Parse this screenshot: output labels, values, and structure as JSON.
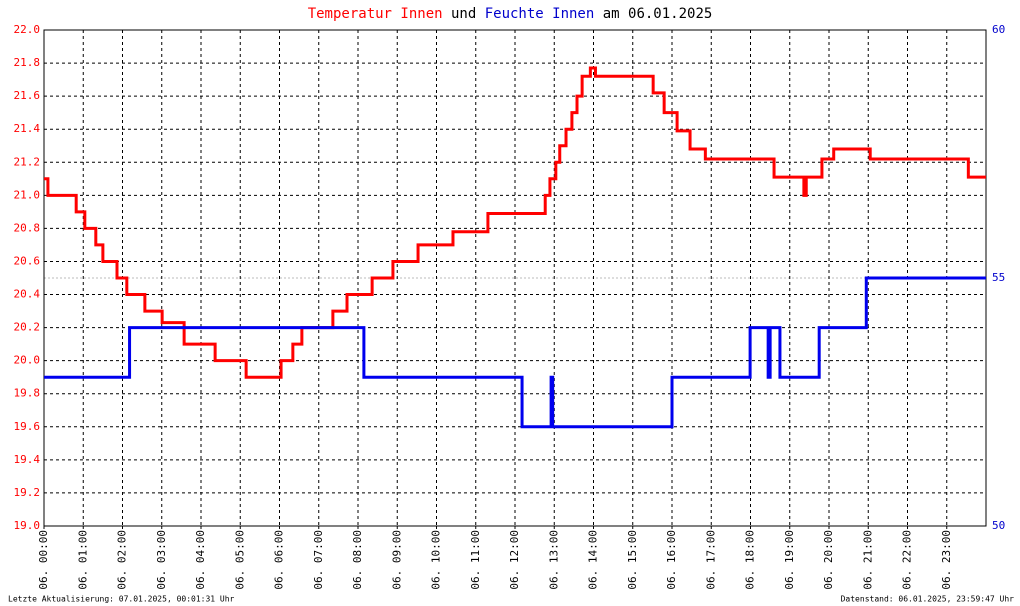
{
  "chart_data": {
    "type": "line",
    "title_parts": [
      {
        "text": "Temperatur Innen",
        "color": "#ff0000"
      },
      {
        "text": "und",
        "color": "#000000"
      },
      {
        "text": "Feuchte Innen",
        "color": "#0000cc"
      },
      {
        "text": "am 06.01.2025",
        "color": "#000000"
      }
    ],
    "footer_left": "Letzte Aktualisierung: 07.01.2025, 00:01:31 Uhr",
    "footer_right": "Datenstand: 06.01.2025, 23:59:47 Uhr",
    "grid": true,
    "xlim": [
      0,
      24
    ],
    "xticks": [
      {
        "value": 0,
        "label": "06. 00:00"
      },
      {
        "value": 1,
        "label": "06. 01:00"
      },
      {
        "value": 2,
        "label": "06. 02:00"
      },
      {
        "value": 3,
        "label": "06. 03:00"
      },
      {
        "value": 4,
        "label": "06. 04:00"
      },
      {
        "value": 5,
        "label": "06. 05:00"
      },
      {
        "value": 6,
        "label": "06. 06:00"
      },
      {
        "value": 7,
        "label": "06. 07:00"
      },
      {
        "value": 8,
        "label": "06. 08:00"
      },
      {
        "value": 9,
        "label": "06. 09:00"
      },
      {
        "value": 10,
        "label": "06. 10:00"
      },
      {
        "value": 11,
        "label": "06. 11:00"
      },
      {
        "value": 12,
        "label": "06. 12:00"
      },
      {
        "value": 13,
        "label": "06. 13:00"
      },
      {
        "value": 14,
        "label": "06. 14:00"
      },
      {
        "value": 15,
        "label": "06. 15:00"
      },
      {
        "value": 16,
        "label": "06. 16:00"
      },
      {
        "value": 17,
        "label": "06. 17:00"
      },
      {
        "value": 18,
        "label": "06. 18:00"
      },
      {
        "value": 19,
        "label": "06. 19:00"
      },
      {
        "value": 20,
        "label": "06. 20:00"
      },
      {
        "value": 21,
        "label": "06. 21:00"
      },
      {
        "value": 22,
        "label": "06. 22:00"
      },
      {
        "value": 23,
        "label": "06. 23:00"
      }
    ],
    "ylim": [
      19,
      22
    ],
    "yticks": [
      {
        "value": 19,
        "label": "19.0"
      },
      19.2,
      19.4,
      19.6,
      19.8,
      {
        "value": 20,
        "label": "20.0"
      },
      20.2,
      20.4,
      20.6,
      20.8,
      {
        "value": 21,
        "label": "21.0"
      },
      21.2,
      21.4,
      21.6,
      21.8,
      {
        "value": 22,
        "label": "22.0"
      }
    ],
    "ytick_color": "#ff0000",
    "y2lim": [
      50,
      60
    ],
    "y2ticks": [
      50,
      55,
      60
    ],
    "y2tick_color": "#0000cc",
    "series": [
      {
        "name": "Temperatur Innen",
        "color": "#ff0000",
        "axis": "y",
        "x": [
          0,
          0.1,
          0.1,
          0.82,
          0.82,
          1.04,
          1.04,
          1.32,
          1.32,
          1.5,
          1.5,
          1.86,
          1.86,
          2.11,
          2.11,
          2.57,
          2.57,
          3.01,
          3.01,
          3.57,
          3.57,
          4.36,
          4.36,
          5.15,
          5.15,
          6.04,
          6.04,
          6.34,
          6.34,
          6.57,
          6.57,
          7.36,
          7.36,
          7.72,
          7.72,
          8.36,
          8.36,
          8.89,
          8.89,
          9.53,
          9.53,
          10.42,
          10.42,
          11.31,
          11.31,
          12.77,
          12.77,
          12.89,
          12.89,
          13.04,
          13.04,
          13.14,
          13.14,
          13.3,
          13.3,
          13.45,
          13.45,
          13.58,
          13.58,
          13.71,
          13.71,
          13.92,
          13.92,
          14.05,
          14.05,
          15.52,
          15.52,
          15.8,
          15.8,
          16.13,
          16.13,
          16.46,
          16.46,
          16.85,
          16.85,
          18.6,
          18.6,
          19.36,
          19.36,
          19.42,
          19.42,
          19.82,
          19.82,
          20.12,
          20.12,
          21.05,
          21.05,
          23.55,
          23.55,
          24
        ],
        "values": [
          21.1,
          21.1,
          21.0,
          21.0,
          20.9,
          20.9,
          20.8,
          20.8,
          20.7,
          20.7,
          20.6,
          20.6,
          20.5,
          20.5,
          20.4,
          20.4,
          20.3,
          20.3,
          20.23,
          20.23,
          20.1,
          20.1,
          20.0,
          20.0,
          19.9,
          19.9,
          20.0,
          20.0,
          20.1,
          20.1,
          20.2,
          20.2,
          20.3,
          20.3,
          20.4,
          20.4,
          20.5,
          20.5,
          20.6,
          20.6,
          20.7,
          20.7,
          20.78,
          20.78,
          20.89,
          20.89,
          21.0,
          21.0,
          21.1,
          21.1,
          21.2,
          21.2,
          21.3,
          21.3,
          21.4,
          21.4,
          21.5,
          21.5,
          21.6,
          21.6,
          21.72,
          21.72,
          21.77,
          21.77,
          21.72,
          21.72,
          21.62,
          21.62,
          21.5,
          21.5,
          21.39,
          21.39,
          21.28,
          21.28,
          21.22,
          21.22,
          21.11,
          21.11,
          21.0,
          21.0,
          21.11,
          21.11,
          21.22,
          21.22,
          21.28,
          21.28,
          21.22,
          21.22,
          21.11,
          21.11
        ]
      },
      {
        "name": "Feuchte Innen",
        "color": "#0000ee",
        "axis": "y2",
        "x": [
          0,
          2.18,
          2.18,
          8.15,
          8.15,
          12.18,
          12.18,
          12.92,
          12.92,
          12.96,
          12.96,
          16.0,
          16.0,
          17.99,
          17.99,
          18.45,
          18.45,
          18.5,
          18.5,
          18.75,
          18.75,
          19.75,
          19.75,
          20.95,
          20.95,
          24
        ],
        "values": [
          53,
          53,
          54,
          54,
          53,
          53,
          52,
          52,
          53,
          53,
          52,
          52,
          53,
          53,
          54,
          54,
          53,
          53,
          54,
          54,
          53,
          53,
          54,
          54,
          55,
          55
        ]
      }
    ]
  }
}
